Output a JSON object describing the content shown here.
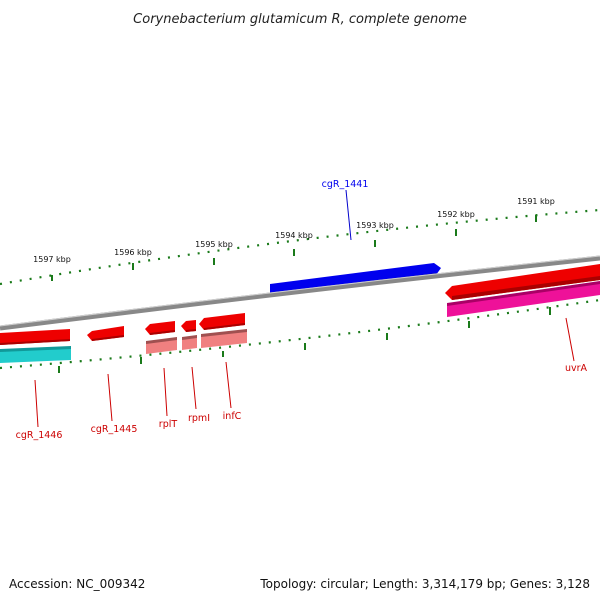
{
  "title": "Corynebacterium glutamicum R, complete genome",
  "footer": {
    "accession": "Accession: NC_009342",
    "summary": "Topology: circular; Length: 3,314,179 bp; Genes: 3,128"
  },
  "ticks": [
    "1597 kbp",
    "1596 kbp",
    "1595 kbp",
    "1594 kbp",
    "1593 kbp",
    "1592 kbp",
    "1591 kbp"
  ],
  "genes": [
    {
      "name": "cgR_1441",
      "color": "#0000ee"
    },
    {
      "name": "uvrA",
      "color": "#cc0000"
    },
    {
      "name": "cgR_1446",
      "color": "#cc0000"
    },
    {
      "name": "cgR_1445",
      "color": "#cc0000"
    },
    {
      "name": "rplT",
      "color": "#cc0000"
    },
    {
      "name": "rpmI",
      "color": "#cc0000"
    },
    {
      "name": "infC",
      "color": "#cc0000"
    }
  ],
  "colors": {
    "backbone": "#888888",
    "tick": "#1a7a1a",
    "forward_cds": "#0000ee",
    "reverse_cds": "#ee0000",
    "rna_magenta": "#ee1199",
    "rna_cyan": "#22cccc",
    "rna_pink": "#f08080"
  }
}
